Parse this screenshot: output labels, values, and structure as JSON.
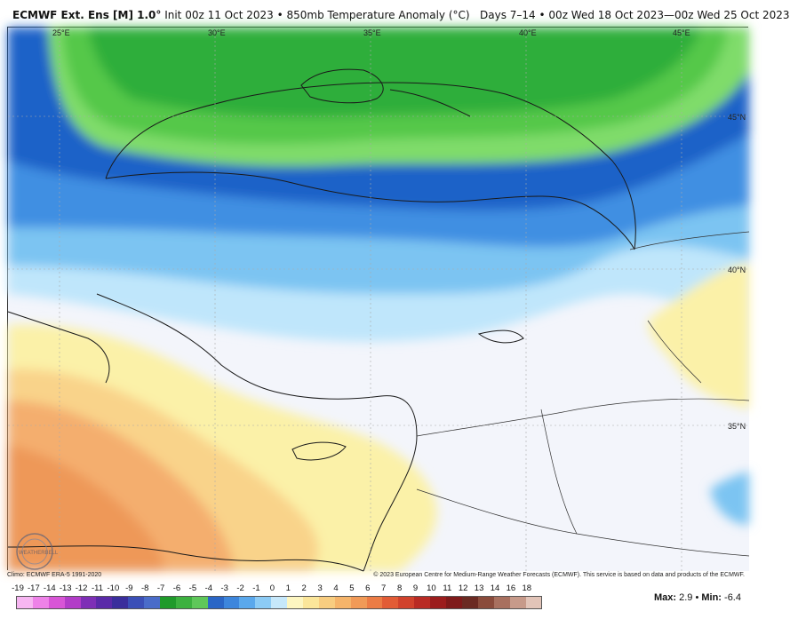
{
  "header": {
    "model": "ECMWF Ext. Ens [M] 1.0°",
    "init": "Init 00z 11 Oct 2023",
    "sep1": "•",
    "field": "850mb Temperature Anomaly (°C)",
    "days": "Days 7–14",
    "sep2": "•",
    "valid": "00z Wed 18 Oct 2023—00z Wed 25 Oct 2023"
  },
  "map": {
    "lon_labels": [
      "25°E",
      "30°E",
      "35°E",
      "40°E",
      "45°E"
    ],
    "lat_labels": [
      "45°N",
      "40°N",
      "35°N"
    ],
    "logo_text": "WEATHERBELL",
    "colors": {
      "green_dark": "#2fae3a",
      "green_mid": "#55c84a",
      "green_light": "#7fdc6a",
      "blue_deep": "#1e62c8",
      "blue_mid": "#3f8fe2",
      "blue_light": "#7cc4f2",
      "blue_pale": "#bfe6fb",
      "neutral": "#f3f5fb",
      "yellow": "#fbf1a8",
      "yellow_orange": "#f9d38a",
      "orange": "#f4ae6e",
      "orange_dark": "#ee9858"
    }
  },
  "credits": {
    "left": "Climo: ECMWF ERA-5 1991-2020",
    "right": "© 2023 European Centre for Medium-Range Weather Forecasts (ECMWF). This service is based on data and products of the ECMWF."
  },
  "colorbar": {
    "labels": [
      "-19",
      "-17",
      "-14",
      "-13",
      "-12",
      "-11",
      "-10",
      "-9",
      "-8",
      "-7",
      "-6",
      "-5",
      "-4",
      "-3",
      "-2",
      "-1",
      "0",
      "1",
      "2",
      "3",
      "4",
      "5",
      "6",
      "7",
      "8",
      "9",
      "10",
      "11",
      "12",
      "13",
      "14",
      "16",
      "18"
    ],
    "colors": [
      "#f7b6f2",
      "#ee82e8",
      "#d855d6",
      "#b23cc8",
      "#7e2fb6",
      "#5a2aa8",
      "#3a2e9c",
      "#3b4fb7",
      "#4a6cc9",
      "#1f9a2a",
      "#3cb13f",
      "#5fc75a",
      "#2a66c6",
      "#3d86dc",
      "#5aa8ec",
      "#8ccbf5",
      "#c6e8fb",
      "#fdf6c1",
      "#fbe69a",
      "#f8cd80",
      "#f5b46a",
      "#f19a57",
      "#ec7c45",
      "#e25c36",
      "#d1422c",
      "#b92b24",
      "#9c1d1d",
      "#7f1a1a",
      "#6b2a22",
      "#8a4b3b",
      "#a8705f",
      "#c79a8a",
      "#e2c4b8"
    ]
  },
  "stats": {
    "max_label": "Max:",
    "max_value": "2.9",
    "bullet": "•",
    "min_label": "Min:",
    "min_value": "-6.4"
  }
}
